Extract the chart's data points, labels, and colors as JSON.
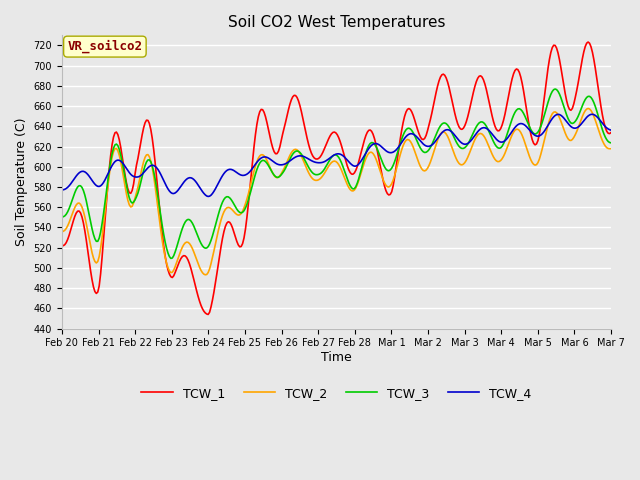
{
  "title": "Soil CO2 West Temperatures",
  "xlabel": "Time",
  "ylabel": "Soil Temperature (C)",
  "ylim": [
    440,
    730
  ],
  "yticks": [
    440,
    460,
    480,
    500,
    520,
    540,
    560,
    580,
    600,
    620,
    640,
    660,
    680,
    700,
    720
  ],
  "annotation_text": "VR_soilco2",
  "annotation_color": "#8B0000",
  "annotation_bg": "#FFFFCC",
  "series_colors": {
    "TCW_1": "#FF0000",
    "TCW_2": "#FFA500",
    "TCW_3": "#00CC00",
    "TCW_4": "#0000CD"
  },
  "background_color": "#E8E8E8",
  "plot_bg": "#E8E8E8",
  "grid_color": "#FFFFFF",
  "x_labels": [
    "Feb 20",
    "Feb 21",
    "Feb 22",
    "Feb 23",
    "Feb 24",
    "Feb 25",
    "Feb 26",
    "Feb 27",
    "Feb 28",
    "Mar 1",
    "Mar 2",
    "Mar 3",
    "Mar 4",
    "Mar 5",
    "Mar 6",
    "Mar 7"
  ],
  "title_fontsize": 11,
  "axis_label_fontsize": 9,
  "tick_fontsize": 7,
  "legend_fontsize": 9,
  "linewidth": 1.2
}
